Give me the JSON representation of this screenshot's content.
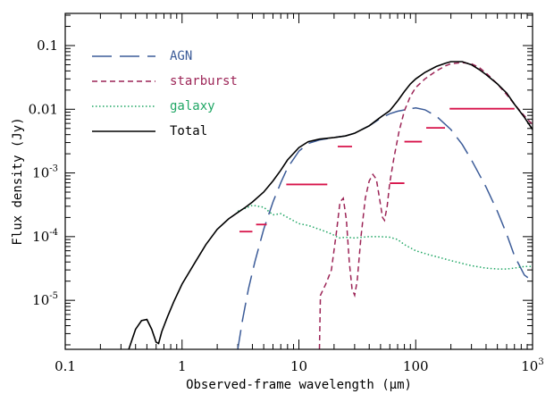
{
  "chart_data": {
    "type": "line",
    "title": "",
    "xlabel": "Observed-frame wavelength (μm)",
    "ylabel": "Flux density (Jy)",
    "xscale": "log",
    "yscale": "log",
    "xlim": [
      0.1,
      1000
    ],
    "ylim": [
      1.7e-06,
      0.32
    ],
    "grid": false,
    "legend_position": "top-left",
    "x_ticks": [
      {
        "value": 0.1,
        "label": "0.1"
      },
      {
        "value": 1,
        "label": "1"
      },
      {
        "value": 10,
        "label": "10"
      },
      {
        "value": 100,
        "label": "100"
      },
      {
        "value": 1000,
        "label": "10",
        "sup": "3"
      }
    ],
    "y_ticks": [
      {
        "value": 0.1,
        "label": "0.1",
        "sup": ""
      },
      {
        "value": 0.01,
        "label": "0.01",
        "sup": ""
      },
      {
        "value": 0.001,
        "label": "10",
        "sup": "-3"
      },
      {
        "value": 0.0001,
        "label": "10",
        "sup": "-4"
      },
      {
        "value": 1e-05,
        "label": "10",
        "sup": "-5"
      }
    ],
    "series": [
      {
        "name": "AGN",
        "color": "#3b5b98",
        "dash": "long",
        "points": [
          [
            3.0,
            1.7e-06
          ],
          [
            3.3,
            5e-06
          ],
          [
            3.7,
            1.5e-05
          ],
          [
            4.2,
            4e-05
          ],
          [
            5,
            0.00013
          ],
          [
            6,
            0.00035
          ],
          [
            7,
            0.0007
          ],
          [
            8,
            0.0012
          ],
          [
            10,
            0.0022
          ],
          [
            12,
            0.0029
          ],
          [
            15,
            0.0033
          ],
          [
            20,
            0.0036
          ],
          [
            25,
            0.0038
          ],
          [
            30,
            0.0042
          ],
          [
            40,
            0.0055
          ],
          [
            50,
            0.0072
          ],
          [
            60,
            0.0085
          ],
          [
            70,
            0.0093
          ],
          [
            85,
            0.01
          ],
          [
            100,
            0.0105
          ],
          [
            120,
            0.0098
          ],
          [
            150,
            0.0078
          ],
          [
            200,
            0.0048
          ],
          [
            250,
            0.0028
          ],
          [
            300,
            0.0016
          ],
          [
            400,
            0.0006
          ],
          [
            500,
            0.00025
          ],
          [
            600,
            0.00011
          ],
          [
            700,
            5e-05
          ],
          [
            850,
            2.5e-05
          ],
          [
            1000,
            2e-05
          ]
        ]
      },
      {
        "name": "starburst",
        "color": "#9c2456",
        "dash": "short",
        "points": [
          [
            15,
            1.7e-06
          ],
          [
            15.3,
            1.2e-05
          ],
          [
            17,
            1.8e-05
          ],
          [
            19,
            3e-05
          ],
          [
            21,
            0.00012
          ],
          [
            22.5,
            0.00035
          ],
          [
            24,
            0.0004
          ],
          [
            25.5,
            0.00018
          ],
          [
            27,
            4e-05
          ],
          [
            28.5,
            1.5e-05
          ],
          [
            30,
            1.2e-05
          ],
          [
            31.5,
            2e-05
          ],
          [
            34,
            0.0001
          ],
          [
            37,
            0.0004
          ],
          [
            40,
            0.00075
          ],
          [
            43,
            0.00095
          ],
          [
            46,
            0.0008
          ],
          [
            49,
            0.0004
          ],
          [
            52,
            0.0002
          ],
          [
            54,
            0.00018
          ],
          [
            57,
            0.0003
          ],
          [
            60,
            0.0007
          ],
          [
            65,
            0.0017
          ],
          [
            72,
            0.0045
          ],
          [
            80,
            0.0095
          ],
          [
            90,
            0.016
          ],
          [
            100,
            0.022
          ],
          [
            120,
            0.03
          ],
          [
            150,
            0.04
          ],
          [
            180,
            0.048
          ],
          [
            200,
            0.052
          ],
          [
            250,
            0.054
          ],
          [
            300,
            0.052
          ],
          [
            350,
            0.045
          ],
          [
            400,
            0.037
          ],
          [
            500,
            0.025
          ],
          [
            600,
            0.017
          ],
          [
            700,
            0.012
          ],
          [
            800,
            0.009
          ],
          [
            900,
            0.007
          ],
          [
            1000,
            0.0058
          ]
        ]
      },
      {
        "name": "galaxy",
        "color": "#1fa664",
        "dash": "dotted",
        "points": [
          [
            3,
            0.00025
          ],
          [
            3.5,
            0.00028
          ],
          [
            4,
            0.00031
          ],
          [
            5,
            0.00029
          ],
          [
            6,
            0.00022
          ],
          [
            7,
            0.00023
          ],
          [
            8,
            0.0002
          ],
          [
            10,
            0.00016
          ],
          [
            12,
            0.00015
          ],
          [
            15,
            0.00013
          ],
          [
            18,
            0.000115
          ],
          [
            20,
            0.000105
          ],
          [
            22,
            9.5e-05
          ],
          [
            25,
            9.8e-05
          ],
          [
            30,
            9.5e-05
          ],
          [
            35,
            9.8e-05
          ],
          [
            40,
            0.0001
          ],
          [
            50,
            0.0001
          ],
          [
            60,
            9.8e-05
          ],
          [
            70,
            9e-05
          ],
          [
            80,
            7.5e-05
          ],
          [
            100,
            6e-05
          ],
          [
            130,
            5.2e-05
          ],
          [
            160,
            4.7e-05
          ],
          [
            200,
            4.2e-05
          ],
          [
            300,
            3.5e-05
          ],
          [
            400,
            3.2e-05
          ],
          [
            500,
            3.1e-05
          ],
          [
            600,
            3.1e-05
          ],
          [
            700,
            3.2e-05
          ],
          [
            850,
            3.4e-05
          ],
          [
            1000,
            3.4e-05
          ]
        ]
      },
      {
        "name": "Total",
        "color": "#000000",
        "dash": "solid",
        "points": [
          [
            0.35,
            1.7e-06
          ],
          [
            0.4,
            3.5e-06
          ],
          [
            0.45,
            4.8e-06
          ],
          [
            0.5,
            5e-06
          ],
          [
            0.55,
            3.5e-06
          ],
          [
            0.6,
            2.2e-06
          ],
          [
            0.63,
            2.1e-06
          ],
          [
            0.67,
            3.2e-06
          ],
          [
            0.75,
            5.5e-06
          ],
          [
            0.85,
            9.5e-06
          ],
          [
            1,
            1.8e-05
          ],
          [
            1.3,
            4e-05
          ],
          [
            1.6,
            7.5e-05
          ],
          [
            2,
            0.00013
          ],
          [
            2.5,
            0.00019
          ],
          [
            3,
            0.00024
          ],
          [
            3.5,
            0.00029
          ],
          [
            4,
            0.00035
          ],
          [
            5,
            0.0005
          ],
          [
            6,
            0.00075
          ],
          [
            7,
            0.0011
          ],
          [
            8,
            0.0016
          ],
          [
            10,
            0.0025
          ],
          [
            12,
            0.0031
          ],
          [
            15,
            0.0034
          ],
          [
            20,
            0.0036
          ],
          [
            25,
            0.0038
          ],
          [
            30,
            0.0042
          ],
          [
            40,
            0.0055
          ],
          [
            50,
            0.0075
          ],
          [
            60,
            0.0095
          ],
          [
            70,
            0.0135
          ],
          [
            80,
            0.019
          ],
          [
            90,
            0.025
          ],
          [
            100,
            0.03
          ],
          [
            120,
            0.038
          ],
          [
            150,
            0.047
          ],
          [
            180,
            0.053
          ],
          [
            200,
            0.056
          ],
          [
            250,
            0.056
          ],
          [
            300,
            0.05
          ],
          [
            350,
            0.042
          ],
          [
            400,
            0.035
          ],
          [
            500,
            0.025
          ],
          [
            600,
            0.018
          ],
          [
            700,
            0.012
          ],
          [
            850,
            0.0075
          ],
          [
            1000,
            0.0048
          ]
        ]
      }
    ],
    "observations": [
      {
        "x_min": 3.1,
        "x_max": 4.0,
        "y": 0.00012
      },
      {
        "x_min": 4.3,
        "x_max": 5.3,
        "y": 0.000155
      },
      {
        "x_min": 7.8,
        "x_max": 17.5,
        "y": 0.00066
      },
      {
        "x_min": 21.5,
        "x_max": 28.5,
        "y": 0.0026
      },
      {
        "x_min": 60,
        "x_max": 80,
        "y": 0.00069
      },
      {
        "x_min": 80,
        "x_max": 113,
        "y": 0.0031
      },
      {
        "x_min": 123,
        "x_max": 178,
        "y": 0.0051
      },
      {
        "x_min": 195,
        "x_max": 700,
        "y": 0.0102
      }
    ],
    "observation_color": "#d7134a"
  }
}
